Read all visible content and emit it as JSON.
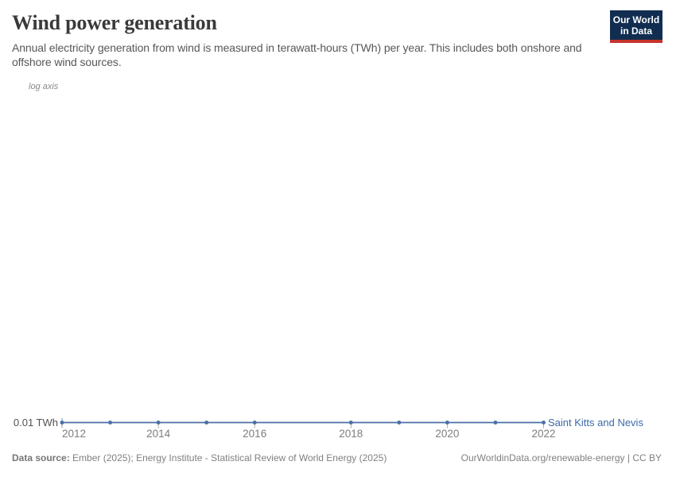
{
  "header": {
    "title": "Wind power generation",
    "subtitle": "Annual electricity generation from wind is measured in terawatt-hours (TWh) per year. This includes both onshore and offshore wind sources.",
    "logo": {
      "line1": "Our World",
      "line2": "in Data"
    }
  },
  "colors": {
    "series_blue": "#4c6fa8",
    "entity_label_blue": "#3d6aa6",
    "tick_gray": "#ababab",
    "start_tick_blue_gray": "#9fb0cd",
    "logo_navy": "#112e51",
    "logo_red": "#c7342c"
  },
  "chart_data": {
    "type": "line",
    "title": "Wind power generation",
    "axis_note": "log axis",
    "y_scale": "log",
    "y_axis_label": "0.01 TWh",
    "unit": "TWh",
    "x_range": [
      2012,
      2022
    ],
    "x_ticks": [
      2012,
      2014,
      2016,
      2018,
      2020,
      2022
    ],
    "grid": false,
    "legend_position": "right-of-line-end",
    "series": [
      {
        "name": "Saint Kitts and Nevis",
        "color": "#4c6fa8",
        "points": [
          {
            "year": 2012,
            "value": 0.01
          },
          {
            "year": 2013,
            "value": 0.01
          },
          {
            "year": 2014,
            "value": 0.01
          },
          {
            "year": 2015,
            "value": 0.01
          },
          {
            "year": 2016,
            "value": 0.01
          },
          {
            "year": 2018,
            "value": 0.01
          },
          {
            "year": 2019,
            "value": 0.01
          },
          {
            "year": 2020,
            "value": 0.01
          },
          {
            "year": 2021,
            "value": 0.01
          },
          {
            "year": 2022,
            "value": 0.01
          }
        ],
        "note": "Flat line at 0.01 TWh from 2012 to 2022; no marker shown at 2017"
      }
    ]
  },
  "footer": {
    "datasource_label": "Data source:",
    "datasource_text": "Ember (2025); Energy Institute - Statistical Review of World Energy (2025)",
    "attribution": "OurWorldinData.org/renewable-energy | CC BY"
  }
}
